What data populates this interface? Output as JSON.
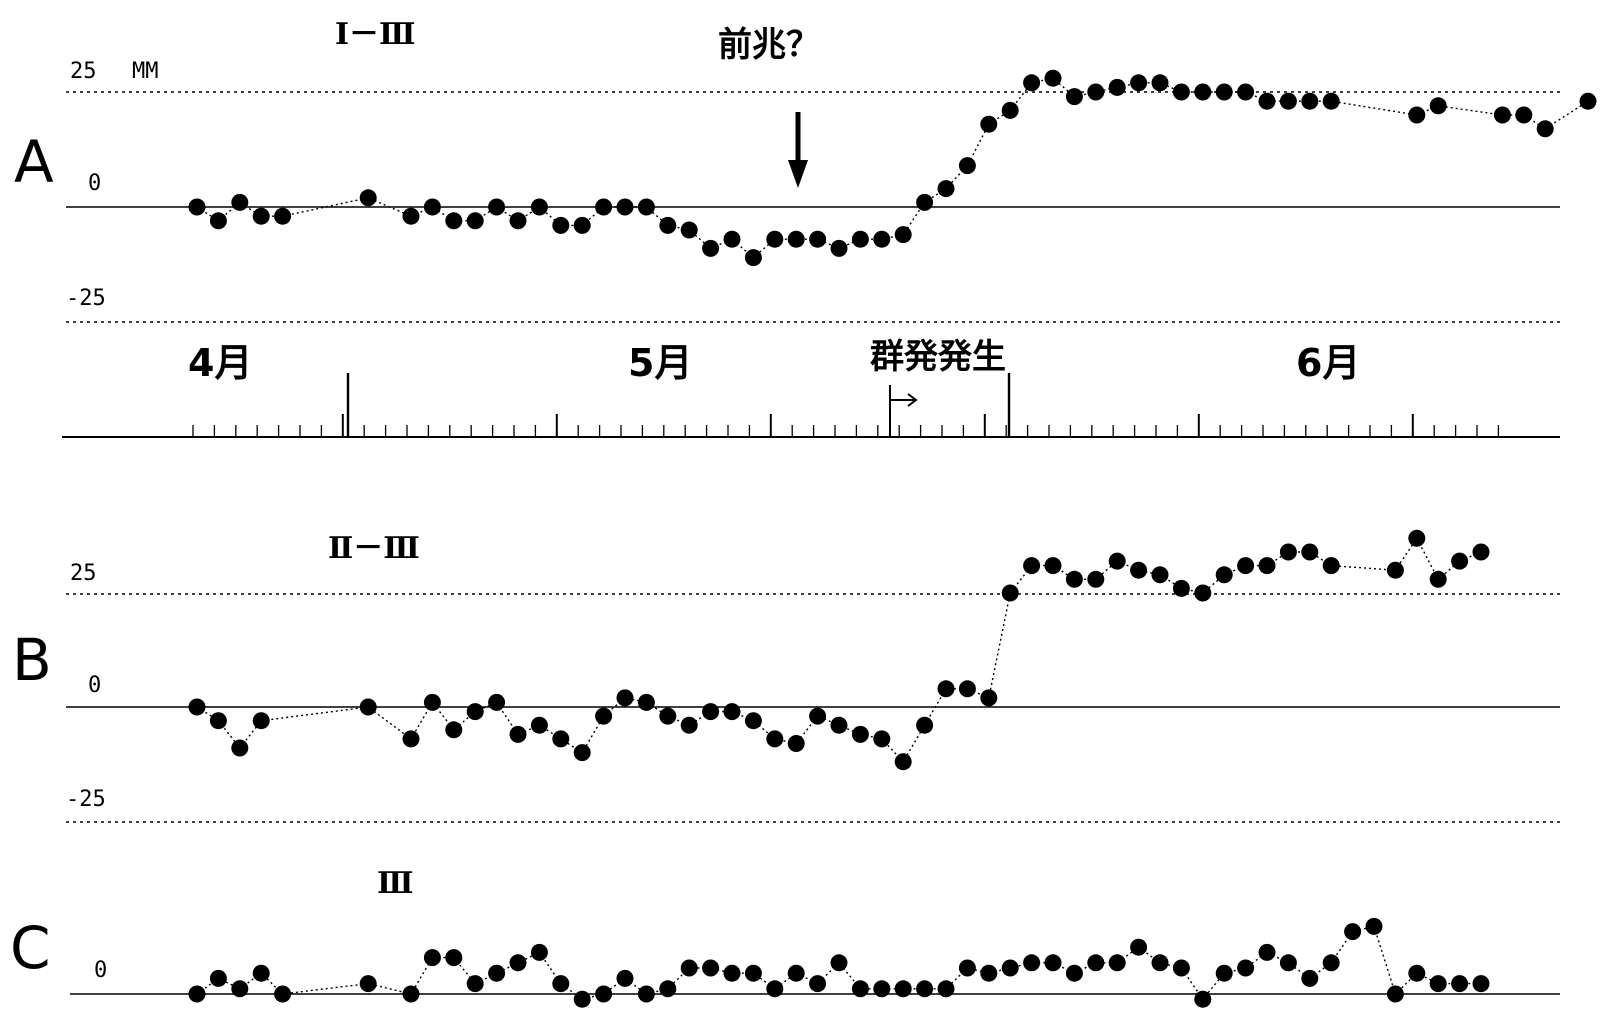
{
  "chart_data": [
    {
      "panel": "A",
      "type": "line",
      "title": "Ⅰ－Ⅲ",
      "unit": "MM",
      "ylim": [
        -25,
        25
      ],
      "y_ticks": [
        "25",
        "0",
        "-25"
      ],
      "annotation": {
        "label": "前兆？",
        "x": 28.5
      },
      "series": [
        {
          "x": [
            1,
            2,
            3,
            4,
            5,
            9,
            11,
            12,
            13,
            14,
            15,
            16,
            17,
            18,
            19,
            20,
            21,
            22,
            23,
            24,
            25,
            26,
            27,
            28,
            29,
            30,
            31,
            32,
            33,
            34,
            35,
            36,
            37,
            38,
            39,
            40,
            41,
            42,
            43,
            44,
            45,
            46,
            47,
            48,
            49,
            50,
            51,
            52,
            53,
            54,
            58,
            59,
            62,
            63,
            64,
            66
          ],
          "y": [
            0,
            -3,
            1,
            -2,
            -2,
            2,
            -2,
            0,
            -3,
            -3,
            0,
            -3,
            0,
            -4,
            -4,
            0,
            0,
            0,
            -4,
            -5,
            -9,
            -7,
            -11,
            -7,
            -7,
            -7,
            -9,
            -7,
            -7,
            -6,
            1,
            4,
            9,
            18,
            21,
            27,
            28,
            24,
            25,
            26,
            27,
            27,
            25,
            25,
            25,
            25,
            23,
            23,
            23,
            23,
            20,
            22,
            20,
            20,
            17,
            23
          ]
        }
      ]
    },
    {
      "panel": "B",
      "type": "line",
      "title": "Ⅱ－Ⅲ",
      "ylim": [
        -25,
        25
      ],
      "y_ticks": [
        "25",
        "0",
        "-25"
      ],
      "series": [
        {
          "x": [
            1,
            2,
            3,
            4,
            9,
            11,
            12,
            13,
            14,
            15,
            16,
            17,
            18,
            19,
            20,
            21,
            22,
            23,
            24,
            25,
            26,
            27,
            28,
            29,
            30,
            31,
            32,
            33,
            34,
            35,
            36,
            37,
            38,
            39,
            40,
            41,
            42,
            43,
            44,
            45,
            46,
            47,
            48,
            49,
            50,
            51,
            52,
            53,
            54,
            57,
            58,
            59,
            60,
            61
          ],
          "y": [
            0,
            -3,
            -9,
            -3,
            0,
            -7,
            1,
            -5,
            -1,
            1,
            -6,
            -4,
            -7,
            -10,
            -2,
            2,
            1,
            -2,
            -4,
            -1,
            -1,
            -3,
            -7,
            -8,
            -2,
            -4,
            -6,
            -7,
            -12,
            -4,
            4,
            4,
            2,
            25,
            31,
            31,
            28,
            28,
            32,
            30,
            29,
            26,
            25,
            29,
            31,
            31,
            34,
            34,
            31,
            30,
            37,
            28,
            32,
            34
          ]
        }
      ]
    },
    {
      "panel": "C",
      "type": "line",
      "title": "Ⅲ",
      "y_ticks": [
        "0"
      ],
      "series": [
        {
          "x": [
            1,
            2,
            3,
            4,
            5,
            9,
            11,
            12,
            13,
            14,
            15,
            16,
            17,
            18,
            19,
            20,
            21,
            22,
            23,
            24,
            25,
            26,
            27,
            28,
            29,
            30,
            31,
            32,
            33,
            34,
            35,
            36,
            37,
            38,
            39,
            40,
            41,
            42,
            43,
            44,
            45,
            46,
            47,
            48,
            49,
            50,
            51,
            52,
            53,
            54,
            55,
            56,
            57,
            58,
            59,
            60,
            61
          ],
          "y": [
            0,
            3,
            1,
            4,
            0,
            2,
            0,
            7,
            7,
            2,
            4,
            6,
            8,
            2,
            -1,
            0,
            3,
            0,
            1,
            5,
            5,
            4,
            4,
            1,
            4,
            2,
            6,
            1,
            1,
            1,
            1,
            1,
            5,
            4,
            5,
            6,
            6,
            4,
            6,
            6,
            9,
            6,
            5,
            -1,
            4,
            5,
            8,
            6,
            3,
            6,
            12,
            13,
            0,
            4,
            2,
            2,
            2
          ]
        }
      ]
    }
  ],
  "time_axis": {
    "months": [
      "4月",
      "5月",
      "6月"
    ],
    "event_label": "群発発生"
  },
  "panels": {
    "a_letter": "A",
    "b_letter": "B",
    "c_letter": "C"
  }
}
